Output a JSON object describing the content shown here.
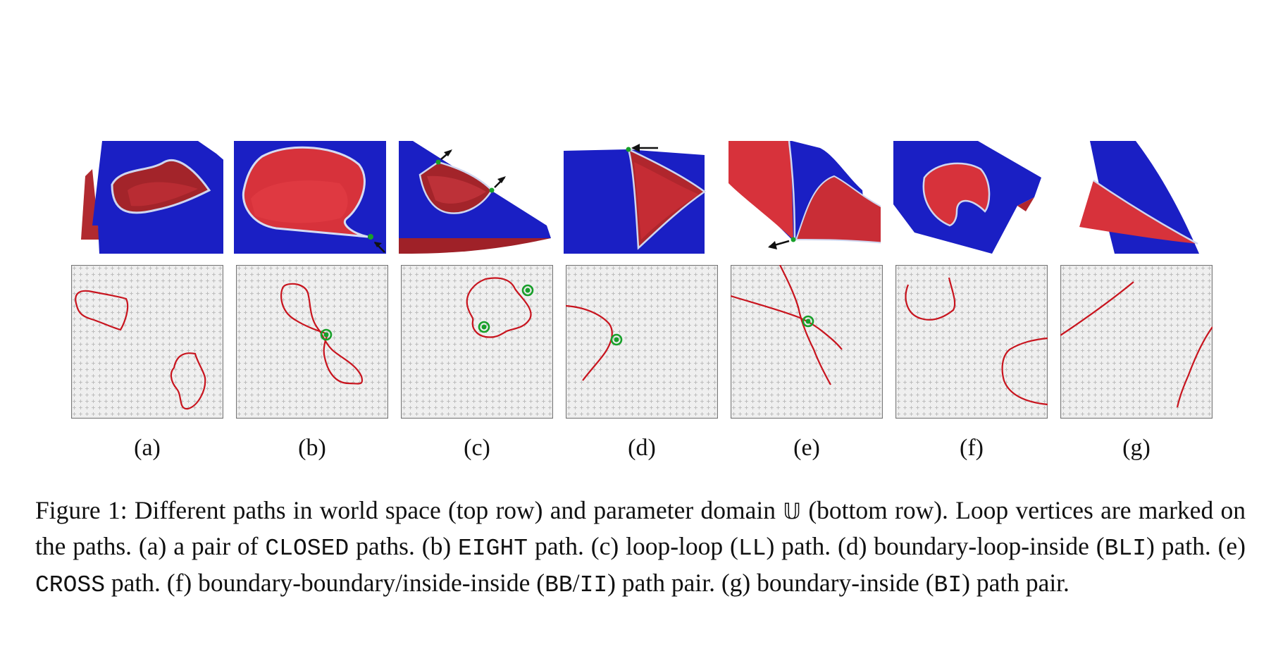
{
  "panels": [
    {
      "id": "a",
      "label": "(a)"
    },
    {
      "id": "b",
      "label": "(b)"
    },
    {
      "id": "c",
      "label": "(c)"
    },
    {
      "id": "d",
      "label": "(d)"
    },
    {
      "id": "e",
      "label": "(e)"
    },
    {
      "id": "f",
      "label": "(f)"
    },
    {
      "id": "g",
      "label": "(g)"
    }
  ],
  "caption": {
    "prefix": "Figure 1:",
    "seg1": " Different paths in world space (top row) and parameter domain ",
    "domain_symbol": "𝕌",
    "seg2": " (bottom row). Loop vertices are marked on the paths. (a) a pair of ",
    "t_closed": "CLOSED",
    "seg3": " paths. (b) ",
    "t_eight": "EIGHT",
    "seg4": " path. (c) loop-loop (",
    "t_ll": "LL",
    "seg5": ") path. (d) boundary-loop-inside (",
    "t_bli": "BLI",
    "seg6": ") path. (e) ",
    "t_cross": "CROSS",
    "seg7": " path. (f) boundary-boundary/inside-inside (",
    "t_bb": "BB",
    "slash": "/",
    "t_ii": "II",
    "seg8": ") path pair. (g) boundary-inside (",
    "t_bi": "BI",
    "seg9": ") path pair."
  },
  "colors": {
    "surface_blue": "#1a1fc4",
    "surface_red": "#d7323b",
    "path_red": "#c8141e",
    "loop_vertex_green": "#18a02a",
    "grid_bg": "#efefef"
  }
}
